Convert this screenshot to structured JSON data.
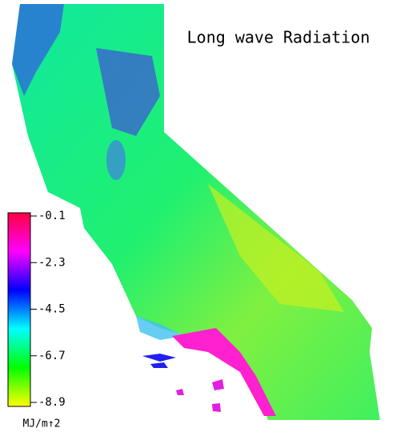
{
  "title": "Long wave Radiation",
  "colorbar": {
    "range": [
      -8.9,
      -0.1
    ],
    "ticks": [
      -0.1,
      -2.3,
      -4.5,
      -6.7,
      -8.9
    ],
    "colors": [
      "#ff0040",
      "#ff00ff",
      "#0000ff",
      "#00ffff",
      "#00ff00",
      "#ffff00"
    ],
    "unit": "MJ/m↑2"
  }
}
